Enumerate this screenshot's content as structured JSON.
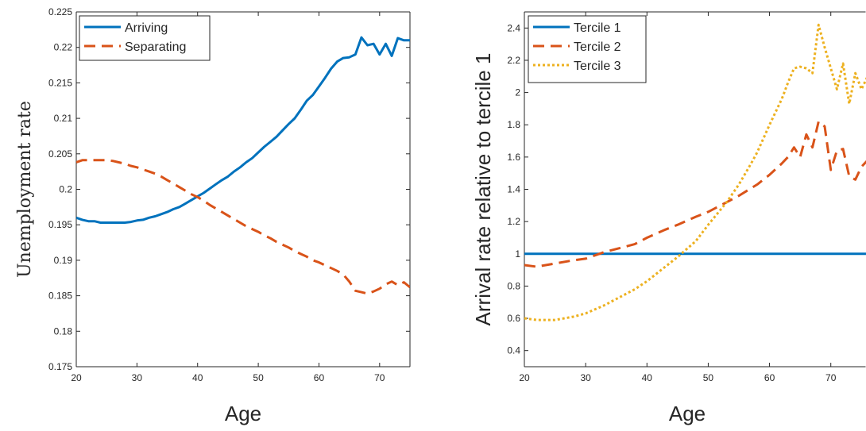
{
  "chart_data": [
    {
      "type": "line",
      "title": "",
      "xlabel": "Age",
      "ylabel": "Unemployment rate",
      "xlim": [
        20,
        75
      ],
      "ylim": [
        0.175,
        0.225
      ],
      "xticks": [
        20,
        30,
        40,
        50,
        60,
        70
      ],
      "yticks": [
        0.175,
        0.18,
        0.185,
        0.19,
        0.195,
        0.2,
        0.205,
        0.21,
        0.215,
        0.22,
        0.225
      ],
      "ytick_labels": [
        "0.175",
        "0.18",
        "0.185",
        "0.19",
        "0.195",
        "0.2",
        "0.205",
        "0.21",
        "0.215",
        "0.22",
        "0.225"
      ],
      "grid": false,
      "legend_position": "top-left",
      "series": [
        {
          "name": "Arriving",
          "color": "#0072BD",
          "dash": "solid",
          "x": [
            20,
            21,
            22,
            23,
            24,
            25,
            26,
            27,
            28,
            29,
            30,
            31,
            32,
            33,
            34,
            35,
            36,
            37,
            38,
            39,
            40,
            41,
            42,
            43,
            44,
            45,
            46,
            47,
            48,
            49,
            50,
            51,
            52,
            53,
            54,
            55,
            56,
            57,
            58,
            59,
            60,
            61,
            62,
            63,
            64,
            65,
            66,
            67,
            68,
            69,
            70,
            71,
            72,
            73,
            74,
            75
          ],
          "y": [
            0.196,
            0.1957,
            0.1955,
            0.1955,
            0.1953,
            0.1953,
            0.1953,
            0.1953,
            0.1953,
            0.1954,
            0.1956,
            0.1957,
            0.196,
            0.1962,
            0.1965,
            0.1968,
            0.1972,
            0.1975,
            0.198,
            0.1985,
            0.199,
            0.1995,
            0.2001,
            0.2007,
            0.2013,
            0.2018,
            0.2025,
            0.2031,
            0.2038,
            0.2044,
            0.2052,
            0.206,
            0.2067,
            0.2074,
            0.2083,
            0.2092,
            0.21,
            0.2112,
            0.2125,
            0.2133,
            0.2145,
            0.2157,
            0.217,
            0.218,
            0.2185,
            0.2186,
            0.219,
            0.2214,
            0.2203,
            0.2205,
            0.219,
            0.2205,
            0.2188,
            0.2213,
            0.221,
            0.221
          ]
        },
        {
          "name": "Separating",
          "color": "#D95319",
          "dash": "dashed",
          "x": [
            20,
            21,
            22,
            23,
            24,
            25,
            26,
            27,
            28,
            29,
            30,
            31,
            32,
            33,
            34,
            35,
            36,
            37,
            38,
            39,
            40,
            41,
            42,
            43,
            44,
            45,
            46,
            47,
            48,
            49,
            50,
            51,
            52,
            53,
            54,
            55,
            56,
            57,
            58,
            59,
            60,
            61,
            62,
            63,
            64,
            65,
            66,
            67,
            68,
            69,
            70,
            71,
            72,
            73,
            74,
            75
          ],
          "y": [
            0.2038,
            0.2041,
            0.2041,
            0.2041,
            0.2041,
            0.2041,
            0.204,
            0.2038,
            0.2036,
            0.2033,
            0.2031,
            0.2028,
            0.2025,
            0.2022,
            0.2018,
            0.2013,
            0.2008,
            0.2003,
            0.1998,
            0.1993,
            0.1989,
            0.1984,
            0.1978,
            0.1973,
            0.1968,
            0.1963,
            0.1958,
            0.1953,
            0.1948,
            0.1944,
            0.194,
            0.1935,
            0.1931,
            0.1926,
            0.1922,
            0.1918,
            0.1913,
            0.1909,
            0.1905,
            0.19,
            0.1897,
            0.1893,
            0.1889,
            0.1885,
            0.188,
            0.187,
            0.1857,
            0.1855,
            0.1853,
            0.1856,
            0.186,
            0.1866,
            0.187,
            0.1865,
            0.1869,
            0.1862
          ]
        }
      ]
    },
    {
      "type": "line",
      "title": "",
      "xlabel": "Age",
      "ylabel": "Arrival rate relative to tercile 1",
      "xlim": [
        20,
        76
      ],
      "ylim": [
        0.3,
        2.5
      ],
      "xticks": [
        20,
        30,
        40,
        50,
        60,
        70
      ],
      "yticks": [
        0.4,
        0.6,
        0.8,
        1.0,
        1.2,
        1.4,
        1.6,
        1.8,
        2.0,
        2.2,
        2.4
      ],
      "ytick_labels": [
        "0.4",
        "0.6",
        "0.8",
        "1",
        "1.2",
        "1.4",
        "1.6",
        "1.8",
        "2",
        "2.2",
        "2.4"
      ],
      "grid": false,
      "legend_position": "top-left",
      "series": [
        {
          "name": "Tercile 1",
          "color": "#0072BD",
          "dash": "solid",
          "x": [
            20,
            76
          ],
          "y": [
            1.0,
            1.0
          ]
        },
        {
          "name": "Tercile 2",
          "color": "#D95319",
          "dash": "dashed",
          "x": [
            20,
            22,
            25,
            28,
            30,
            33,
            35,
            38,
            40,
            43,
            45,
            48,
            50,
            53,
            55,
            58,
            60,
            62,
            63,
            64,
            65,
            66,
            67,
            68,
            69,
            70,
            71,
            72,
            73,
            74,
            75,
            76
          ],
          "y": [
            0.93,
            0.92,
            0.94,
            0.96,
            0.97,
            1.01,
            1.03,
            1.06,
            1.1,
            1.15,
            1.18,
            1.23,
            1.26,
            1.32,
            1.36,
            1.43,
            1.49,
            1.56,
            1.6,
            1.66,
            1.6,
            1.74,
            1.66,
            1.82,
            1.79,
            1.52,
            1.64,
            1.65,
            1.48,
            1.46,
            1.54,
            1.58
          ]
        },
        {
          "name": "Tercile 3",
          "color": "#EDB120",
          "dash": "dotted",
          "x": [
            20,
            22,
            25,
            28,
            30,
            33,
            35,
            38,
            40,
            43,
            45,
            48,
            50,
            53,
            55,
            57,
            58,
            60,
            62,
            63,
            64,
            65,
            66,
            67,
            68,
            69,
            70,
            71,
            72,
            73,
            74,
            75,
            76
          ],
          "y": [
            0.6,
            0.59,
            0.59,
            0.61,
            0.63,
            0.68,
            0.72,
            0.78,
            0.83,
            0.92,
            0.98,
            1.08,
            1.18,
            1.32,
            1.43,
            1.56,
            1.63,
            1.8,
            1.96,
            2.06,
            2.15,
            2.16,
            2.15,
            2.12,
            2.42,
            2.28,
            2.15,
            2.02,
            2.18,
            1.93,
            2.12,
            2.02,
            2.1
          ]
        }
      ]
    }
  ]
}
